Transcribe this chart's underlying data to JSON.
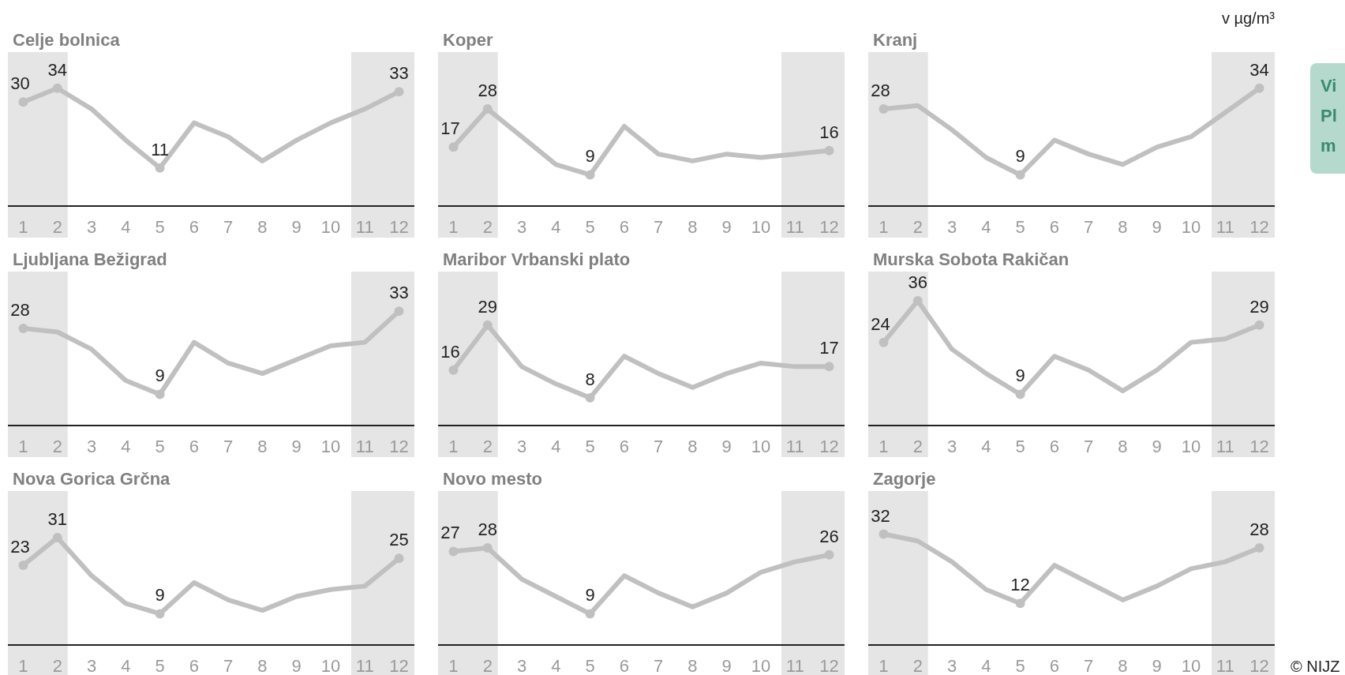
{
  "chart_data": [
    {
      "type": "line",
      "title": "Celje bolnica",
      "x": [
        1,
        2,
        3,
        4,
        5,
        6,
        7,
        8,
        9,
        10,
        11,
        12
      ],
      "xlim": [
        0.55,
        12.45
      ],
      "xticks": [
        1,
        2,
        3,
        4,
        5,
        6,
        7,
        8,
        9,
        10,
        11,
        12
      ],
      "tick_labels": "x",
      "bands": [
        {
          "axis": "x",
          "from": 0.55,
          "to": 2.3,
          "color": "#e5e5e5"
        },
        {
          "axis": "x",
          "from": 10.6,
          "to": 12.45,
          "color": "#e5e5e5"
        }
      ],
      "series": [
        {
          "color": "#c0c0c0",
          "values": [
            30,
            34,
            28,
            19,
            11,
            24,
            20,
            13,
            19,
            24,
            28,
            33
          ],
          "value_labels": [
            "30",
            "34",
            null,
            null,
            "11",
            null,
            null,
            null,
            null,
            null,
            null,
            "33"
          ]
        }
      ]
    },
    {
      "type": "line",
      "title": "Koper",
      "x": [
        1,
        2,
        3,
        4,
        5,
        6,
        7,
        8,
        9,
        10,
        11,
        12
      ],
      "xlim": [
        0.55,
        12.45
      ],
      "xticks": [
        1,
        2,
        3,
        4,
        5,
        6,
        7,
        8,
        9,
        10,
        11,
        12
      ],
      "tick_labels": "x",
      "bands": [
        {
          "axis": "x",
          "from": 0.55,
          "to": 2.3,
          "color": "#e5e5e5"
        },
        {
          "axis": "x",
          "from": 10.6,
          "to": 12.45,
          "color": "#e5e5e5"
        }
      ],
      "series": [
        {
          "color": "#c0c0c0",
          "values": [
            17,
            28,
            20,
            12,
            9,
            23,
            15,
            13,
            15,
            14,
            15,
            16
          ],
          "value_labels": [
            "17",
            "28",
            null,
            null,
            "9",
            null,
            null,
            null,
            null,
            null,
            null,
            "16"
          ]
        }
      ]
    },
    {
      "type": "line",
      "title": "Kranj",
      "x": [
        1,
        2,
        3,
        4,
        5,
        6,
        7,
        8,
        9,
        10,
        11,
        12
      ],
      "xlim": [
        0.55,
        12.45
      ],
      "xticks": [
        1,
        2,
        3,
        4,
        5,
        6,
        7,
        8,
        9,
        10,
        11,
        12
      ],
      "tick_labels": "x",
      "annotations": [
        "v µg/m³",
        "Vi\nPl\nm"
      ],
      "bands": [
        {
          "axis": "x",
          "from": 0.55,
          "to": 2.3,
          "color": "#e5e5e5"
        },
        {
          "axis": "x",
          "from": 10.6,
          "to": 12.45,
          "color": "#e5e5e5"
        }
      ],
      "series": [
        {
          "color": "#c0c0c0",
          "values": [
            28,
            29,
            22,
            14,
            9,
            19,
            15,
            12,
            17,
            20,
            27,
            34
          ],
          "value_labels": [
            "28",
            null,
            null,
            null,
            "9",
            null,
            null,
            null,
            null,
            null,
            null,
            "34"
          ]
        }
      ]
    },
    {
      "type": "line",
      "title": "Ljubljana Bežigrad",
      "x": [
        1,
        2,
        3,
        4,
        5,
        6,
        7,
        8,
        9,
        10,
        11,
        12
      ],
      "xlim": [
        0.55,
        12.45
      ],
      "xticks": [
        1,
        2,
        3,
        4,
        5,
        6,
        7,
        8,
        9,
        10,
        11,
        12
      ],
      "tick_labels": "x",
      "bands": [
        {
          "axis": "x",
          "from": 0.55,
          "to": 2.3,
          "color": "#e5e5e5"
        },
        {
          "axis": "x",
          "from": 10.6,
          "to": 12.45,
          "color": "#e5e5e5"
        }
      ],
      "series": [
        {
          "color": "#c0c0c0",
          "values": [
            28,
            27,
            22,
            13,
            9,
            24,
            18,
            15,
            19,
            23,
            24,
            33
          ],
          "value_labels": [
            "28",
            null,
            null,
            null,
            "9",
            null,
            null,
            null,
            null,
            null,
            null,
            "33"
          ]
        }
      ]
    },
    {
      "type": "line",
      "title": "Maribor Vrbanski plato",
      "x": [
        1,
        2,
        3,
        4,
        5,
        6,
        7,
        8,
        9,
        10,
        11,
        12
      ],
      "xlim": [
        0.55,
        12.45
      ],
      "xticks": [
        1,
        2,
        3,
        4,
        5,
        6,
        7,
        8,
        9,
        10,
        11,
        12
      ],
      "tick_labels": "x",
      "bands": [
        {
          "axis": "x",
          "from": 0.55,
          "to": 2.3,
          "color": "#e5e5e5"
        },
        {
          "axis": "x",
          "from": 10.6,
          "to": 12.45,
          "color": "#e5e5e5"
        }
      ],
      "series": [
        {
          "color": "#c0c0c0",
          "values": [
            16,
            29,
            17,
            12,
            8,
            20,
            15,
            11,
            15,
            18,
            17,
            17
          ],
          "value_labels": [
            "16",
            "29",
            null,
            null,
            "8",
            null,
            null,
            null,
            null,
            null,
            null,
            "17"
          ]
        }
      ]
    },
    {
      "type": "line",
      "title": "Murska Sobota Rakičan",
      "x": [
        1,
        2,
        3,
        4,
        5,
        6,
        7,
        8,
        9,
        10,
        11,
        12
      ],
      "xlim": [
        0.55,
        12.45
      ],
      "xticks": [
        1,
        2,
        3,
        4,
        5,
        6,
        7,
        8,
        9,
        10,
        11,
        12
      ],
      "tick_labels": "x",
      "bands": [
        {
          "axis": "x",
          "from": 0.55,
          "to": 2.3,
          "color": "#e5e5e5"
        },
        {
          "axis": "x",
          "from": 10.6,
          "to": 12.45,
          "color": "#e5e5e5"
        }
      ],
      "series": [
        {
          "color": "#c0c0c0",
          "values": [
            24,
            36,
            22,
            15,
            9,
            20,
            16,
            10,
            16,
            24,
            25,
            29
          ],
          "value_labels": [
            "24",
            "36",
            null,
            null,
            "9",
            null,
            null,
            null,
            null,
            null,
            null,
            "29"
          ]
        }
      ]
    },
    {
      "type": "line",
      "title": "Nova Gorica Grčna",
      "x": [
        1,
        2,
        3,
        4,
        5,
        6,
        7,
        8,
        9,
        10,
        11,
        12
      ],
      "xlim": [
        0.55,
        12.45
      ],
      "xticks": [
        1,
        2,
        3,
        4,
        5,
        6,
        7,
        8,
        9,
        10,
        11,
        12
      ],
      "tick_labels": "x",
      "bands": [
        {
          "axis": "x",
          "from": 0.55,
          "to": 2.3,
          "color": "#e5e5e5"
        },
        {
          "axis": "x",
          "from": 10.6,
          "to": 12.45,
          "color": "#e5e5e5"
        }
      ],
      "series": [
        {
          "color": "#c0c0c0",
          "values": [
            23,
            31,
            20,
            12,
            9,
            18,
            13,
            10,
            14,
            16,
            17,
            25
          ],
          "value_labels": [
            "23",
            "31",
            null,
            null,
            "9",
            null,
            null,
            null,
            null,
            null,
            null,
            "25"
          ]
        }
      ]
    },
    {
      "type": "line",
      "title": "Novo mesto",
      "x": [
        1,
        2,
        3,
        4,
        5,
        6,
        7,
        8,
        9,
        10,
        11,
        12
      ],
      "xlim": [
        0.55,
        12.45
      ],
      "xticks": [
        1,
        2,
        3,
        4,
        5,
        6,
        7,
        8,
        9,
        10,
        11,
        12
      ],
      "tick_labels": "x",
      "bands": [
        {
          "axis": "x",
          "from": 0.55,
          "to": 2.3,
          "color": "#e5e5e5"
        },
        {
          "axis": "x",
          "from": 10.6,
          "to": 12.45,
          "color": "#e5e5e5"
        }
      ],
      "series": [
        {
          "color": "#c0c0c0",
          "values": [
            27,
            28,
            19,
            14,
            9,
            20,
            15,
            11,
            15,
            21,
            24,
            26
          ],
          "value_labels": [
            "27",
            "28",
            null,
            null,
            "9",
            null,
            null,
            null,
            null,
            null,
            null,
            "26"
          ]
        }
      ]
    },
    {
      "type": "line",
      "title": "Zagorje",
      "x": [
        1,
        2,
        3,
        4,
        5,
        6,
        7,
        8,
        9,
        10,
        11,
        12
      ],
      "xlim": [
        0.55,
        12.45
      ],
      "xticks": [
        1,
        2,
        3,
        4,
        5,
        6,
        7,
        8,
        9,
        10,
        11,
        12
      ],
      "tick_labels": "x",
      "annotations": [
        "© NIJZ"
      ],
      "bands": [
        {
          "axis": "x",
          "from": 0.55,
          "to": 2.3,
          "color": "#e5e5e5"
        },
        {
          "axis": "x",
          "from": 10.6,
          "to": 12.45,
          "color": "#e5e5e5"
        }
      ],
      "series": [
        {
          "color": "#c0c0c0",
          "values": [
            32,
            30,
            24,
            16,
            12,
            23,
            18,
            13,
            17,
            22,
            24,
            28
          ],
          "value_labels": [
            "32",
            null,
            null,
            null,
            "12",
            null,
            null,
            null,
            null,
            null,
            null,
            "28"
          ]
        }
      ]
    }
  ]
}
